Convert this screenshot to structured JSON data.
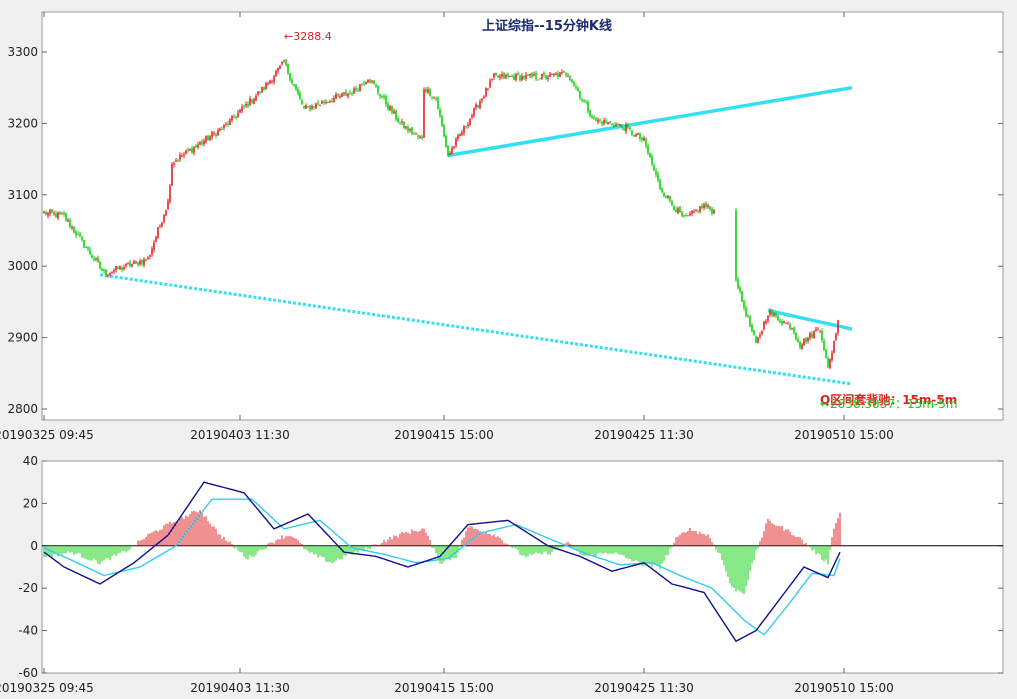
{
  "chart_data": [
    {
      "type": "candlestick",
      "title": "上证综指--15分钟K线",
      "ylim": [
        2785,
        3340
      ],
      "yticks": [
        2800,
        2900,
        3000,
        3100,
        3200,
        3300
      ],
      "xticks": [
        "20190325 09:45",
        "20190403 11:30",
        "20190415 15:00",
        "20190425 11:30",
        "20190510 15:00"
      ],
      "colors": {
        "up": "#e02020",
        "down": "#10d010",
        "trendline": "#33e0f0"
      },
      "annotations": [
        {
          "text": "←3288.4",
          "x_index": 120,
          "y": 3300,
          "color": "#e02020"
        },
        {
          "text": "Q区间套背驰：15m-5m",
          "x_index": 392,
          "y": 2812,
          "color": "#e02020"
        },
        {
          "text": "←2838.3837：15m-5m",
          "x_index": 392,
          "y": 2800,
          "color": "#10d010"
        }
      ],
      "trendlines": [
        {
          "from": [
            28,
            2988
          ],
          "to": [
            404,
            2835
          ],
          "style": "dotted"
        },
        {
          "from": [
            202,
            3155
          ],
          "to": [
            404,
            3250
          ],
          "style": "solid"
        },
        {
          "from": [
            362,
            2938
          ],
          "to": [
            404,
            2912
          ],
          "style": "solid"
        }
      ],
      "segments": [
        {
          "from": 0,
          "to": 10,
          "start": 3075,
          "end": 3070
        },
        {
          "from": 10,
          "to": 30,
          "start": 3070,
          "end": 2990
        },
        {
          "from": 30,
          "to": 52,
          "start": 2990,
          "end": 3010
        },
        {
          "from": 52,
          "to": 62,
          "start": 3010,
          "end": 3090
        },
        {
          "from": 62,
          "to": 64,
          "start": 3090,
          "end": 3145
        },
        {
          "from": 64,
          "to": 90,
          "start": 3145,
          "end": 3195
        },
        {
          "from": 90,
          "to": 110,
          "start": 3195,
          "end": 3250
        },
        {
          "from": 110,
          "to": 120,
          "start": 3250,
          "end": 3285
        },
        {
          "from": 120,
          "to": 130,
          "start": 3285,
          "end": 3220
        },
        {
          "from": 130,
          "to": 155,
          "start": 3220,
          "end": 3245
        },
        {
          "from": 155,
          "to": 162,
          "start": 3245,
          "end": 3265
        },
        {
          "from": 162,
          "to": 178,
          "start": 3265,
          "end": 3200
        },
        {
          "from": 178,
          "to": 190,
          "start": 3200,
          "end": 3175
        },
        {
          "from": 190,
          "to": 196,
          "start": 3250,
          "end": 3235
        },
        {
          "from": 196,
          "to": 202,
          "start": 3235,
          "end": 3155
        },
        {
          "from": 202,
          "to": 225,
          "start": 3155,
          "end": 3265
        },
        {
          "from": 225,
          "to": 250,
          "start": 3265,
          "end": 3265
        },
        {
          "from": 250,
          "to": 262,
          "start": 3265,
          "end": 3270
        },
        {
          "from": 262,
          "to": 275,
          "start": 3270,
          "end": 3205
        },
        {
          "from": 275,
          "to": 290,
          "start": 3205,
          "end": 3195
        },
        {
          "from": 290,
          "to": 300,
          "start": 3195,
          "end": 3175
        },
        {
          "from": 300,
          "to": 308,
          "start": 3175,
          "end": 3110
        },
        {
          "from": 308,
          "to": 320,
          "start": 3110,
          "end": 3065
        },
        {
          "from": 320,
          "to": 330,
          "start": 3065,
          "end": 3085
        },
        {
          "from": 330,
          "to": 336,
          "start": 3085,
          "end": 3075
        },
        {
          "from": 346,
          "to": 348,
          "start": 2985,
          "end": 2960
        },
        {
          "from": 348,
          "to": 356,
          "start": 2960,
          "end": 2890
        },
        {
          "from": 356,
          "to": 362,
          "start": 2890,
          "end": 2935
        },
        {
          "from": 362,
          "to": 374,
          "start": 2935,
          "end": 2915
        },
        {
          "from": 374,
          "to": 378,
          "start": 2915,
          "end": 2890
        },
        {
          "from": 378,
          "to": 388,
          "start": 2890,
          "end": 2915
        },
        {
          "from": 388,
          "to": 392,
          "start": 2915,
          "end": 2855
        },
        {
          "from": 392,
          "to": 398,
          "start": 2855,
          "end": 2935
        }
      ],
      "ohlc": []
    },
    {
      "type": "macd",
      "ylim": [
        -60,
        40
      ],
      "yticks": [
        -60,
        -40,
        -20,
        0,
        20,
        40
      ],
      "xticks": [
        "20190325 09:45",
        "20190403 11:30",
        "20190415 15:00",
        "20190425 11:30",
        "20190510 15:00"
      ],
      "colors": {
        "hist_pos": "#e02020",
        "hist_neg": "#10d010",
        "dif": "#101090",
        "dea": "#33ccee"
      },
      "dif_keypoints": [
        [
          0,
          -3
        ],
        [
          10,
          -10
        ],
        [
          28,
          -18
        ],
        [
          45,
          -8
        ],
        [
          62,
          5
        ],
        [
          80,
          30
        ],
        [
          100,
          25
        ],
        [
          115,
          8
        ],
        [
          132,
          15
        ],
        [
          150,
          -3
        ],
        [
          166,
          -5
        ],
        [
          182,
          -10
        ],
        [
          198,
          -5
        ],
        [
          212,
          10
        ],
        [
          232,
          12
        ],
        [
          252,
          0
        ],
        [
          268,
          -5
        ],
        [
          284,
          -12
        ],
        [
          300,
          -8
        ],
        [
          314,
          -18
        ],
        [
          330,
          -22
        ],
        [
          346,
          -45
        ],
        [
          356,
          -40
        ],
        [
          368,
          -25
        ],
        [
          380,
          -10
        ],
        [
          392,
          -15
        ],
        [
          398,
          -3
        ]
      ],
      "dea_keypoints": [
        [
          0,
          -1
        ],
        [
          12,
          -6
        ],
        [
          30,
          -14
        ],
        [
          48,
          -10
        ],
        [
          66,
          0
        ],
        [
          84,
          22
        ],
        [
          104,
          22
        ],
        [
          120,
          8
        ],
        [
          138,
          12
        ],
        [
          154,
          -1
        ],
        [
          170,
          -4
        ],
        [
          186,
          -8
        ],
        [
          202,
          -6
        ],
        [
          218,
          6
        ],
        [
          236,
          10
        ],
        [
          256,
          2
        ],
        [
          272,
          -4
        ],
        [
          288,
          -9
        ],
        [
          304,
          -8
        ],
        [
          318,
          -14
        ],
        [
          334,
          -20
        ],
        [
          350,
          -35
        ],
        [
          360,
          -42
        ],
        [
          372,
          -28
        ],
        [
          384,
          -13
        ],
        [
          395,
          -14
        ],
        [
          398,
          -6
        ]
      ],
      "hist_keypoints": [
        [
          0,
          -5
        ],
        [
          14,
          -3
        ],
        [
          28,
          -8
        ],
        [
          42,
          -2
        ],
        [
          52,
          5
        ],
        [
          62,
          10
        ],
        [
          78,
          17
        ],
        [
          88,
          5
        ],
        [
          102,
          -6
        ],
        [
          118,
          4
        ],
        [
          124,
          5
        ],
        [
          132,
          -3
        ],
        [
          144,
          -8
        ],
        [
          152,
          -4
        ],
        [
          160,
          -2
        ],
        [
          172,
          3
        ],
        [
          180,
          6
        ],
        [
          190,
          8
        ],
        [
          198,
          -8
        ],
        [
          206,
          -5
        ],
        [
          212,
          9
        ],
        [
          226,
          5
        ],
        [
          240,
          -5
        ],
        [
          254,
          -3
        ],
        [
          262,
          1
        ],
        [
          270,
          -5
        ],
        [
          284,
          -3
        ],
        [
          300,
          -9
        ],
        [
          308,
          -10
        ],
        [
          316,
          3
        ],
        [
          322,
          8
        ],
        [
          332,
          5
        ],
        [
          338,
          -4
        ],
        [
          344,
          -20
        ],
        [
          350,
          -22
        ],
        [
          356,
          -3
        ],
        [
          362,
          12
        ],
        [
          376,
          5
        ],
        [
          388,
          -5
        ],
        [
          392,
          -8
        ],
        [
          394,
          5
        ],
        [
          398,
          16
        ]
      ],
      "series_count": 399
    }
  ]
}
